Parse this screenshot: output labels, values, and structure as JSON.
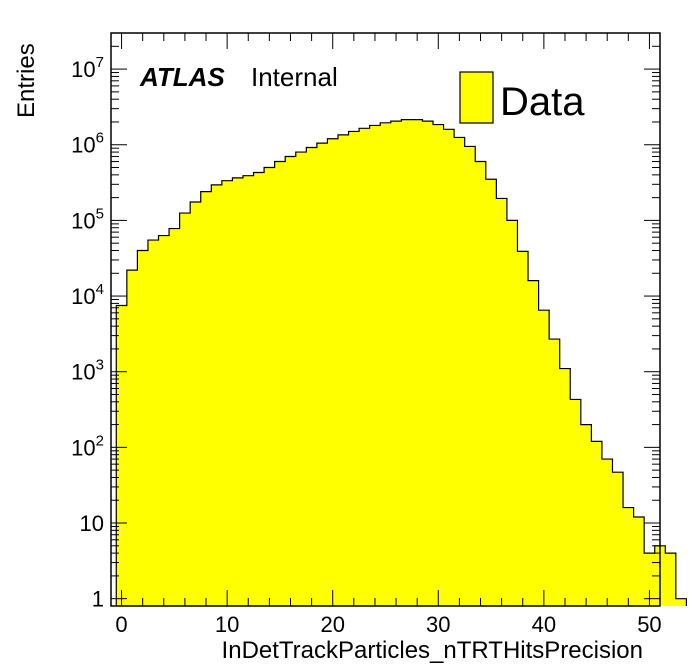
{
  "chart_data": {
    "type": "bar",
    "title": "",
    "xlabel": "InDetTrackParticles_nTRTHitsPrecision",
    "ylabel": "Entries",
    "xlim": [
      -1,
      51
    ],
    "ylim": [
      0.8,
      30000000
    ],
    "log_y": true,
    "grid": false,
    "legend_position": "top-right",
    "x_ticks": [
      0,
      10,
      20,
      30,
      40,
      50
    ],
    "x_tick_labels": [
      "0",
      "10",
      "20",
      "30",
      "40",
      "50"
    ],
    "y_tick_labels": [
      {
        "mant": "1",
        "exp": ""
      },
      {
        "mant": "10",
        "exp": ""
      },
      {
        "mant": "10",
        "exp": "2"
      },
      {
        "mant": "10",
        "exp": "3"
      },
      {
        "mant": "10",
        "exp": "4"
      },
      {
        "mant": "10",
        "exp": "5"
      },
      {
        "mant": "10",
        "exp": "6"
      },
      {
        "mant": "10",
        "exp": "7"
      }
    ],
    "bin_edges_start": -0.5,
    "bin_width": 1,
    "series": [
      {
        "name": "Data",
        "color": "#ffff00",
        "values": [
          7500,
          22000,
          40000,
          55000,
          63000,
          78000,
          125000,
          175000,
          240000,
          295000,
          335000,
          365000,
          390000,
          430000,
          500000,
          600000,
          700000,
          800000,
          920000,
          1050000,
          1200000,
          1350000,
          1500000,
          1650000,
          1800000,
          1950000,
          2050000,
          2150000,
          2150000,
          2050000,
          1850000,
          1600000,
          1250000,
          950000,
          600000,
          350000,
          195000,
          100000,
          39000,
          16000,
          6500,
          2700,
          1100,
          430,
          200,
          120,
          70,
          47,
          16,
          12,
          4,
          5,
          4,
          1
        ]
      }
    ],
    "annotations": {
      "experiment": "ATLAS",
      "status": "Internal"
    },
    "legend": {
      "label": "Data",
      "color": "#ffff00"
    }
  }
}
